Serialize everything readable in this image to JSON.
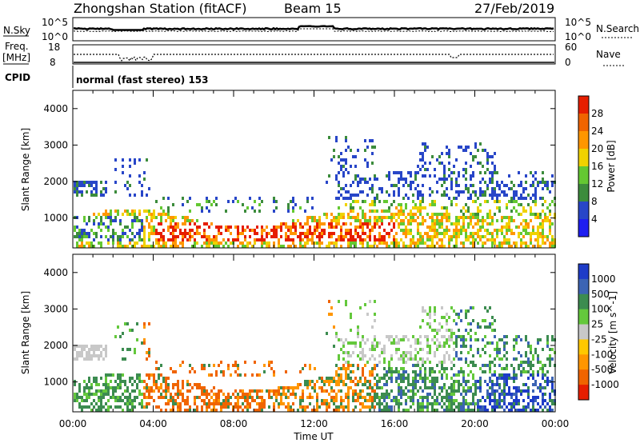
{
  "header": {
    "station": "Zhongshan Station (fitACF)",
    "beam": "Beam 15",
    "date": "27/Feb/2019"
  },
  "top_panels": {
    "nsky_label": "N.Sky",
    "nsearch_label": "N.Search",
    "freq_label": "Freq.",
    "freq_unit": "[MHz]",
    "nave_label": "Nave",
    "cpid_label": "CPID",
    "cpid_text": "normal (fast stereo) 153",
    "left_ticks_top": [
      "10^5",
      "10^0"
    ],
    "right_ticks_top": [
      "10^5",
      "10^0"
    ],
    "left_ticks_freq": [
      "18",
      "8"
    ],
    "right_ticks_freq": [
      "60",
      "0"
    ]
  },
  "chart_data": [
    {
      "type": "heatmap",
      "name": "power",
      "ylabel": "Slant Range [km]",
      "ylim": [
        180,
        4500
      ],
      "yticks": [
        "1000",
        "2000",
        "3000",
        "4000"
      ],
      "x_range_hours": [
        0,
        24
      ],
      "colorbar_label": "Power [dB]",
      "colorbar_ticks": [
        "4",
        "8",
        "12",
        "16",
        "20",
        "24",
        "28"
      ],
      "colorbar_colors": [
        "#1e1ef0",
        "#2846c8",
        "#3c8c3c",
        "#64c832",
        "#f0d200",
        "#ff9600",
        "#f06400",
        "#e61e00"
      ]
    },
    {
      "type": "heatmap",
      "name": "velocity",
      "ylabel": "Slant Range [km]",
      "ylim": [
        180,
        4500
      ],
      "yticks": [
        "1000",
        "2000",
        "3000",
        "4000"
      ],
      "x_range_hours": [
        0,
        24
      ],
      "colorbar_label": "Velocity [m s^-1]",
      "colorbar_ticks": [
        "1000",
        "500",
        "100",
        "25",
        "-25",
        "-100",
        "-500",
        "-1000"
      ],
      "colorbar_colors": [
        "#1e3cc8",
        "#3c64b4",
        "#3c8c50",
        "#64c83c",
        "#c8c8c8",
        "#ffc800",
        "#ff9600",
        "#f06400",
        "#e61e00"
      ]
    }
  ],
  "xaxis": {
    "ticks": [
      "00:00",
      "04:00",
      "08:00",
      "12:00",
      "16:00",
      "20:00",
      "00:00"
    ],
    "label": "Time UT"
  }
}
